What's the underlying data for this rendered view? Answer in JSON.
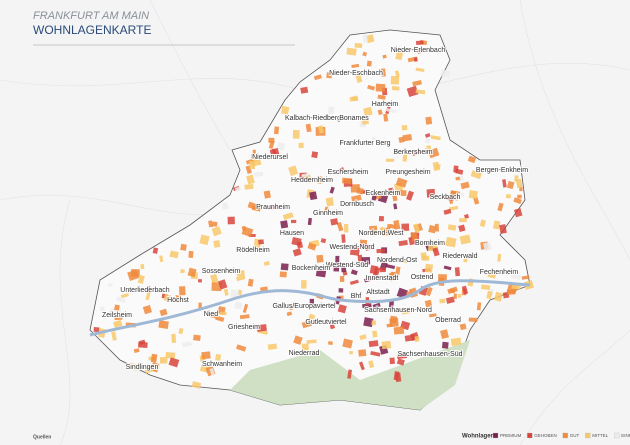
{
  "header": {
    "title_line1": "FRANKFURT AM MAIN",
    "title_line2": "WOHNLAGENKARTE"
  },
  "districts": [
    "Nieder-Erlenbach",
    "Nieder-Eschbach",
    "Harheim",
    "Kalbach-Riedberg",
    "Bonames",
    "Frankfurter Berg",
    "Berkersheim",
    "Niederursel",
    "Heddernheim",
    "Eschersheim",
    "Preungesheim",
    "Bergen-Enkheim",
    "Eckenheim",
    "Seckbach",
    "Praunheim",
    "Dornbusch",
    "Ginnheim",
    "Hausen",
    "Nordend-West",
    "Bornheim",
    "Westend-Nord",
    "Rödelheim",
    "Nordend-Ost",
    "Riederwald",
    "Sossenheim",
    "Westend-Süd",
    "Bockenheim",
    "Ostend",
    "Fechenheim",
    "Unterliederbach",
    "Innenstadt",
    "Höchst",
    "Altstadt",
    "Bhf",
    "Gallus/Europaviertel",
    "Sachsenhausen-Nord",
    "Zeilsheim",
    "Nied",
    "Oberrad",
    "Griesheim",
    "Gutleutviertel",
    "Niederrad",
    "Sachsenhausen-Süd",
    "Schwanheim",
    "Sindlingen"
  ],
  "legend": {
    "title": "Wohnlagen",
    "items": [
      {
        "label": "PREMIUM",
        "color": "#7a1f4f"
      },
      {
        "label": "GEHOBEN",
        "color": "#d7443c"
      },
      {
        "label": "GUT",
        "color": "#f08a3c"
      },
      {
        "label": "MITTEL",
        "color": "#f7c86a"
      },
      {
        "label": "EINFACH",
        "color": "#ececec"
      }
    ]
  },
  "footer": {
    "sources": "Quellen"
  }
}
